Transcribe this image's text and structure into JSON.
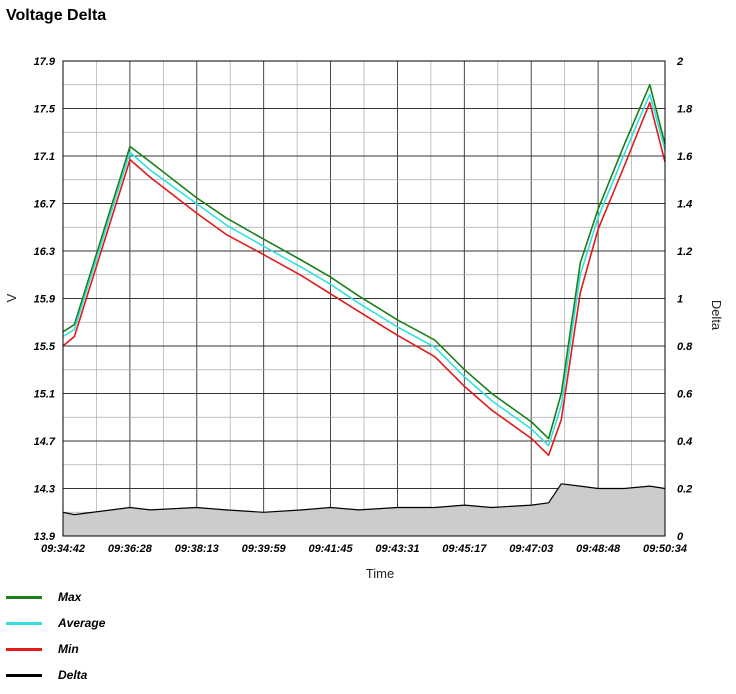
{
  "title": "Voltage Delta",
  "chart_data": {
    "type": "line",
    "title": "Voltage Delta",
    "xlabel": "Time",
    "ylabel": "V",
    "y2label": "Delta",
    "ylim": [
      13.9,
      17.9
    ],
    "y2lim": [
      0,
      2
    ],
    "y_ticks": [
      "17.9",
      "17.5",
      "17.1",
      "16.7",
      "16.3",
      "15.9",
      "15.5",
      "15.1",
      "14.7",
      "14.3",
      "13.9"
    ],
    "y2_ticks": [
      "2",
      "1.8",
      "1.6",
      "1.4",
      "1.2",
      "1",
      "0.8",
      "0.6",
      "0.4",
      "0.2",
      "0"
    ],
    "x_ticks": [
      "09:34:42",
      "09:36:28",
      "09:38:13",
      "09:39:59",
      "09:41:45",
      "09:43:31",
      "09:45:17",
      "09:47:03",
      "09:48:48",
      "09:50:34"
    ],
    "grid": true,
    "legend_position": "bottom-left",
    "x": [
      "09:34:42",
      "09:35:00",
      "09:36:28",
      "09:37:00",
      "09:38:13",
      "09:39:00",
      "09:39:59",
      "09:41:00",
      "09:41:45",
      "09:42:30",
      "09:43:31",
      "09:44:30",
      "09:45:17",
      "09:46:00",
      "09:47:03",
      "09:47:30",
      "09:47:50",
      "09:48:20",
      "09:48:48",
      "09:49:30",
      "09:50:10",
      "09:50:34"
    ],
    "series": [
      {
        "name": "Max",
        "color": "#1a7f1a",
        "values": [
          15.62,
          15.68,
          17.18,
          17.05,
          16.75,
          16.58,
          16.4,
          16.22,
          16.08,
          15.92,
          15.72,
          15.55,
          15.3,
          15.1,
          14.86,
          14.72,
          15.1,
          16.2,
          16.65,
          17.2,
          17.7,
          17.2
        ]
      },
      {
        "name": "Average",
        "color": "#33e0e0",
        "values": [
          15.58,
          15.64,
          17.13,
          16.98,
          16.7,
          16.52,
          16.34,
          16.16,
          16.02,
          15.86,
          15.66,
          15.49,
          15.24,
          15.04,
          14.8,
          14.66,
          15.0,
          16.1,
          16.58,
          17.12,
          17.62,
          17.15
        ]
      },
      {
        "name": "Min",
        "color": "#e01a1a",
        "values": [
          15.5,
          15.58,
          17.07,
          16.92,
          16.62,
          16.44,
          16.27,
          16.09,
          15.94,
          15.79,
          15.59,
          15.41,
          15.16,
          14.96,
          14.72,
          14.58,
          14.88,
          15.95,
          16.48,
          17.02,
          17.55,
          17.05
        ]
      },
      {
        "name": "Delta",
        "color": "#000000",
        "axis": "right",
        "values": [
          0.1,
          0.09,
          0.12,
          0.11,
          0.12,
          0.11,
          0.1,
          0.11,
          0.12,
          0.11,
          0.12,
          0.12,
          0.13,
          0.12,
          0.13,
          0.14,
          0.22,
          0.21,
          0.2,
          0.2,
          0.21,
          0.2
        ]
      }
    ]
  },
  "legend": [
    {
      "label": "Max",
      "color": "#1a7f1a"
    },
    {
      "label": "Average",
      "color": "#33e0e0"
    },
    {
      "label": "Min",
      "color": "#e01a1a"
    },
    {
      "label": "Delta",
      "color": "#000000"
    }
  ]
}
